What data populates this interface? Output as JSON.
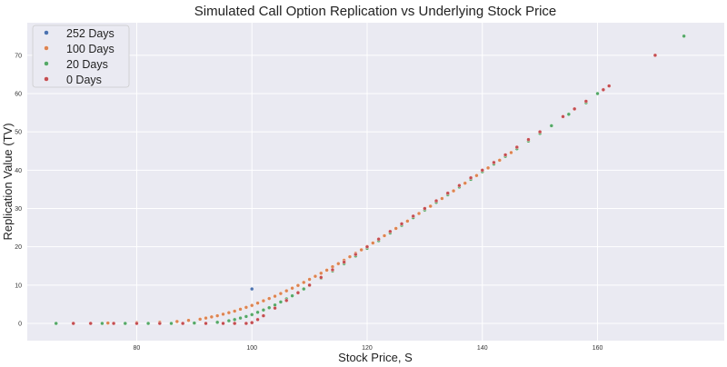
{
  "chart_data": {
    "type": "scatter",
    "title": "Simulated Call Option Replication vs Underlying Stock Price",
    "xlabel": "Stock Price, S",
    "ylabel": "Replication Value (TV)",
    "xlim": [
      61,
      182
    ],
    "ylim": [
      -4.5,
      78.5
    ],
    "xticks": [
      80,
      100,
      120,
      140,
      160
    ],
    "yticks": [
      0,
      10,
      20,
      30,
      40,
      50,
      60,
      70
    ],
    "grid": true,
    "legend_position": "top-left",
    "strike": 100,
    "series": [
      {
        "name": "252 Days",
        "color": "#4c72b0",
        "x": [
          100
        ],
        "y": [
          9
        ]
      },
      {
        "name": "100 Days",
        "color": "#dd8452",
        "x": [
          75,
          80,
          84,
          87,
          89,
          91,
          92,
          93,
          94,
          95,
          96,
          97,
          98,
          99,
          100,
          101,
          102,
          103,
          104,
          105,
          106,
          107,
          108,
          109,
          110,
          111,
          112,
          113,
          114,
          115,
          116,
          117,
          118,
          119,
          120,
          121,
          122,
          123,
          124,
          125,
          126,
          127,
          128,
          129,
          130,
          131,
          132,
          133,
          134,
          135,
          136,
          137,
          138,
          139,
          140,
          141,
          142,
          143,
          144,
          145
        ],
        "y": [
          0.1,
          0.2,
          0.3,
          0.5,
          0.8,
          1.1,
          1.4,
          1.7,
          2.0,
          2.4,
          2.8,
          3.2,
          3.7,
          4.2,
          4.7,
          5.3,
          5.9,
          6.5,
          7.1,
          7.8,
          8.5,
          9.2,
          9.9,
          10.7,
          11.5,
          12.3,
          13.1,
          13.9,
          14.8,
          15.6,
          16.5,
          17.4,
          18.3,
          19.2,
          20.1,
          21.0,
          22.0,
          22.9,
          23.9,
          24.8,
          25.8,
          26.7,
          27.7,
          28.7,
          29.6,
          30.6,
          31.6,
          32.6,
          33.6,
          34.6,
          35.6,
          36.6,
          37.6,
          38.6,
          39.6,
          40.6,
          41.6,
          42.6,
          43.6,
          44.6
        ]
      },
      {
        "name": "20 Days",
        "color": "#55a868",
        "x": [
          66,
          74,
          78,
          82,
          86,
          90,
          94,
          96,
          97,
          98,
          99,
          100,
          101,
          102,
          103,
          104,
          105,
          106,
          107,
          108,
          109,
          110,
          112,
          114,
          116,
          118,
          120,
          122,
          124,
          126,
          128,
          130,
          132,
          134,
          136,
          138,
          140,
          142,
          144,
          146,
          148,
          150,
          152,
          155,
          158,
          160,
          175
        ],
        "y": [
          0,
          0,
          0,
          0,
          0,
          0.1,
          0.3,
          0.7,
          1.0,
          1.4,
          1.8,
          2.3,
          2.9,
          3.5,
          4.1,
          4.8,
          5.6,
          6.4,
          7.2,
          8.1,
          9.0,
          9.9,
          11.8,
          13.7,
          15.6,
          17.6,
          19.6,
          21.6,
          23.6,
          25.6,
          27.6,
          29.6,
          31.6,
          33.6,
          35.6,
          37.6,
          39.6,
          41.6,
          43.6,
          45.6,
          47.6,
          49.6,
          51.6,
          54.6,
          57.6,
          60.0,
          75.0
        ]
      },
      {
        "name": "0 Days",
        "color": "#c44e52",
        "x": [
          69,
          72,
          76,
          80,
          84,
          88,
          92,
          95,
          97,
          99,
          100,
          101,
          102,
          104,
          106,
          108,
          110,
          112,
          114,
          116,
          118,
          120,
          122,
          124,
          126,
          128,
          130,
          132,
          134,
          136,
          138,
          140,
          142,
          144,
          146,
          148,
          150,
          154,
          156,
          158,
          161,
          162,
          170
        ],
        "y": [
          0,
          0,
          0,
          0,
          0,
          0,
          0,
          0,
          0,
          0,
          0.2,
          1.0,
          2.0,
          4.0,
          6.0,
          8.0,
          10.0,
          12.0,
          14.0,
          16.0,
          18.0,
          20.0,
          22.0,
          24.0,
          26.0,
          28.0,
          30.0,
          32.0,
          34.0,
          36.0,
          38.0,
          40.0,
          42.0,
          44.0,
          46.0,
          48.0,
          50.0,
          54.0,
          56.0,
          58.0,
          61.0,
          62.0,
          70.0
        ]
      }
    ]
  }
}
